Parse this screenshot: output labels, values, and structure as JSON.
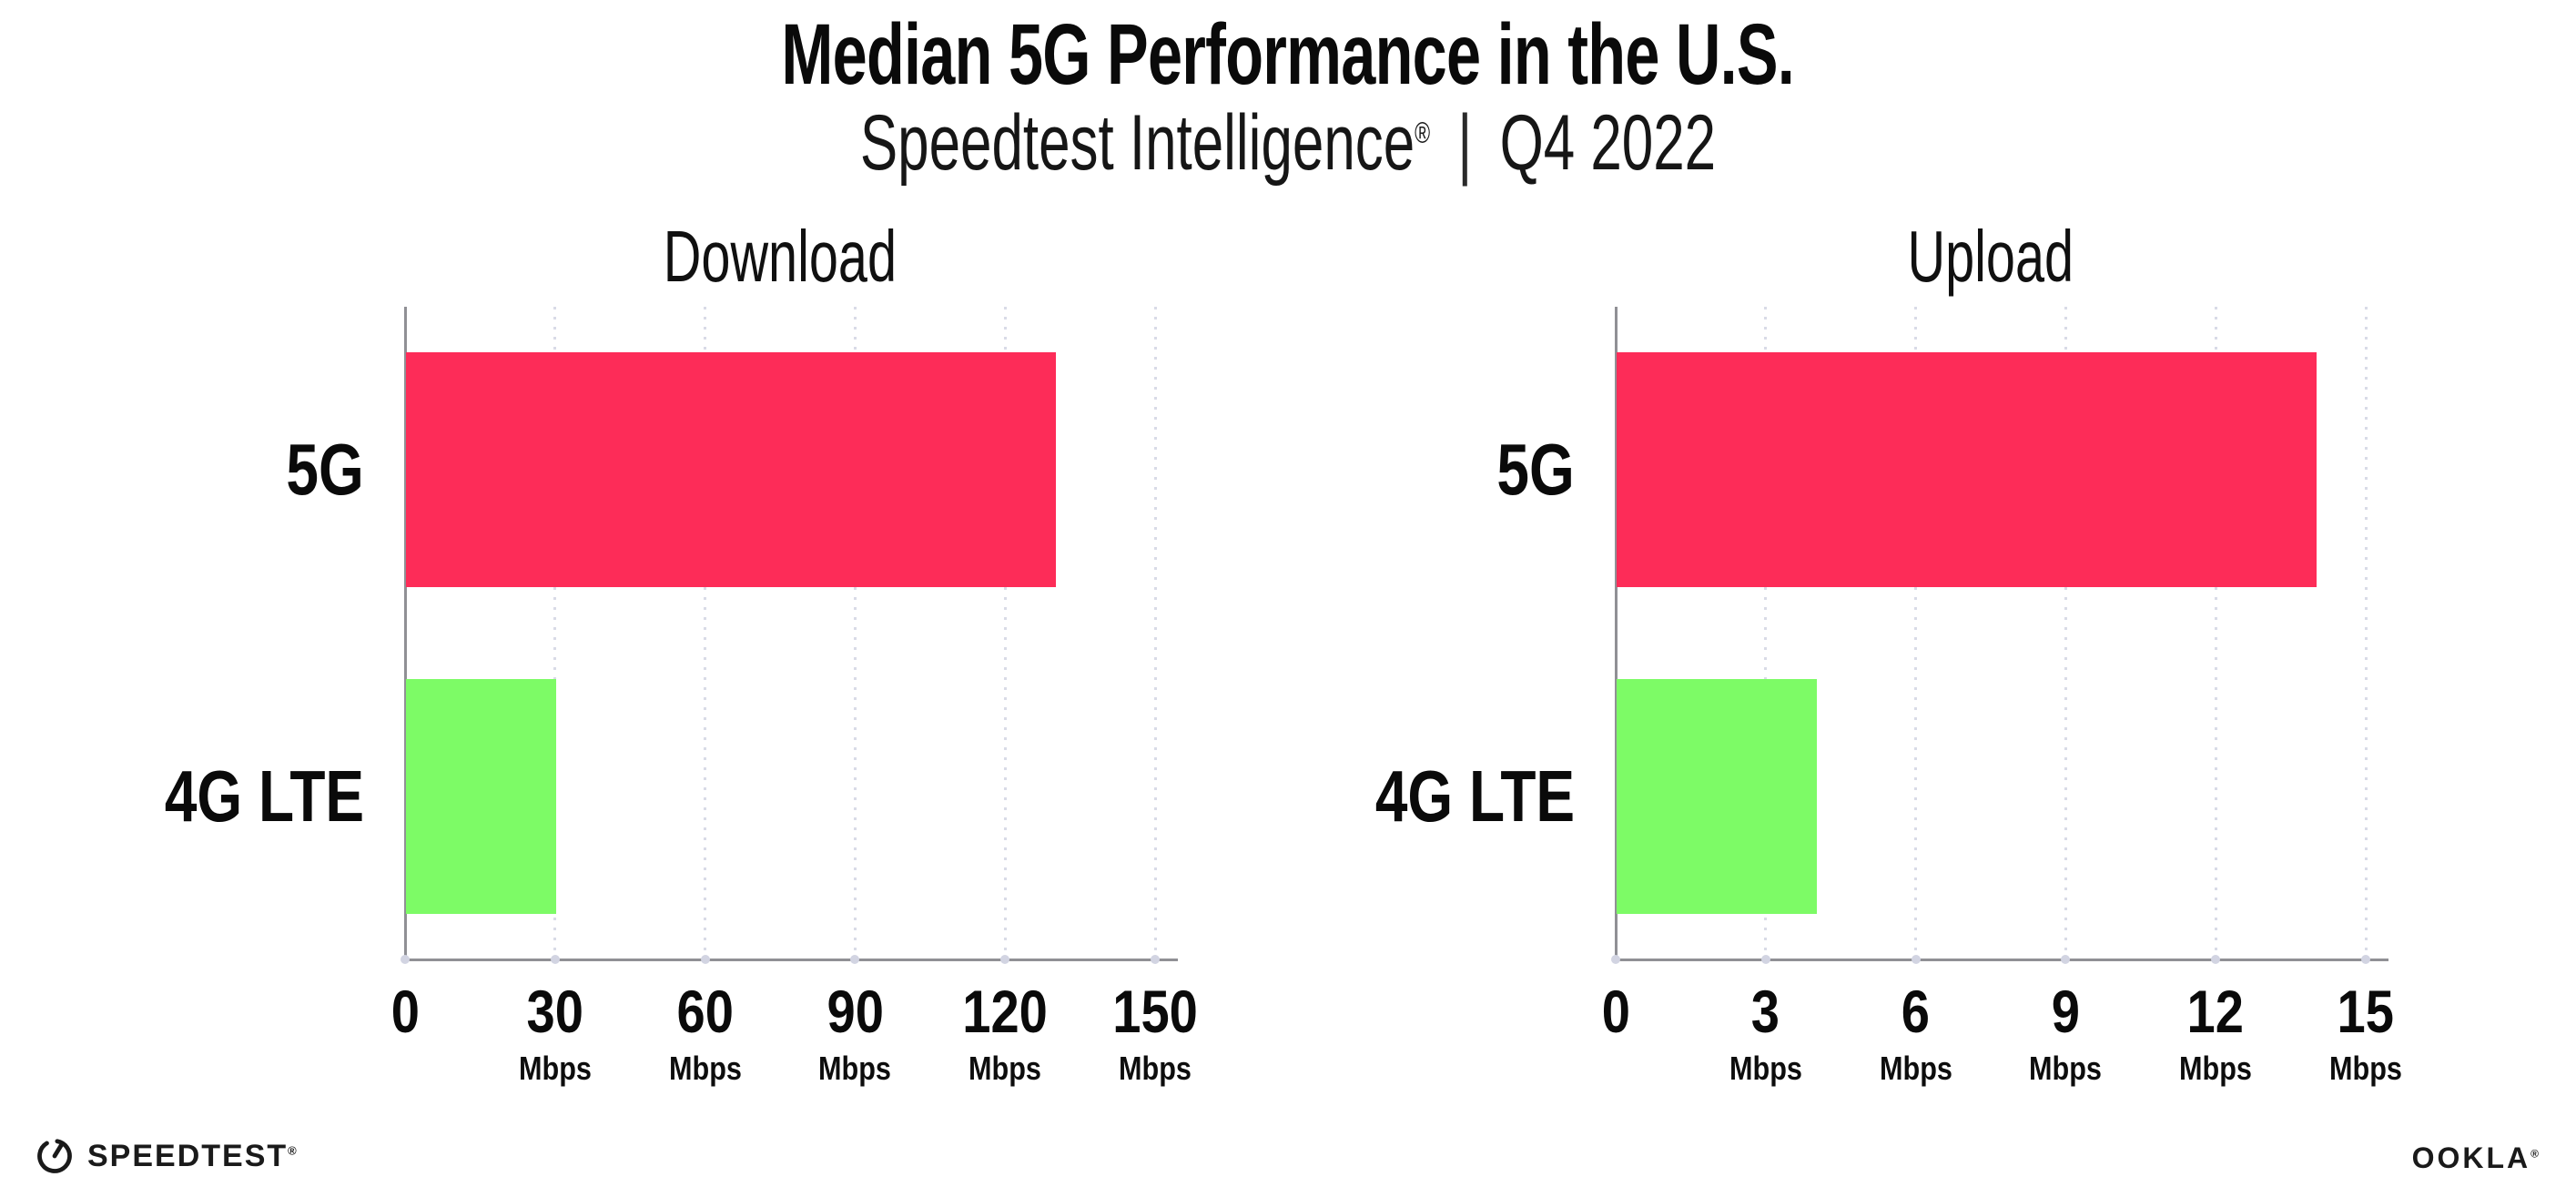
{
  "header": {
    "title": "Median 5G Performance in the U.S.",
    "subtitle": {
      "brand": "Speedtest Intelligence",
      "trademark": "®",
      "separator": "|",
      "period": "Q4 2022"
    }
  },
  "chart_data": [
    {
      "type": "bar",
      "orientation": "horizontal",
      "title": "Download",
      "categories": [
        "5G",
        "4G LTE"
      ],
      "values": [
        130,
        30
      ],
      "unit": "Mbps",
      "xlim": [
        0,
        150
      ],
      "xticks": [
        0,
        30,
        60,
        90,
        120,
        150
      ],
      "grid": "dotted-vertical",
      "bar_colors": [
        "#FD2C58",
        "#7DFB66"
      ]
    },
    {
      "type": "bar",
      "orientation": "horizontal",
      "title": "Upload",
      "categories": [
        "5G",
        "4G LTE"
      ],
      "values": [
        14,
        4
      ],
      "unit": "Mbps",
      "xlim": [
        0,
        15
      ],
      "xticks": [
        0,
        3,
        6,
        9,
        12,
        15
      ],
      "grid": "dotted-vertical",
      "bar_colors": [
        "#FD2C58",
        "#7DFB66"
      ]
    }
  ],
  "colors": {
    "bar_5g": "#FD2C58",
    "bar_4g_lte": "#7DFB66",
    "axis": "#909095",
    "gridline_dot": "#D9DBE7",
    "tick_dot": "#D2D4E2",
    "text": "#0A0A0A"
  },
  "footer": {
    "speedtest_wordmark": "SPEEDTEST",
    "speedtest_trademark": "®",
    "ookla_wordmark": "OOKLA",
    "ookla_trademark": "®"
  }
}
